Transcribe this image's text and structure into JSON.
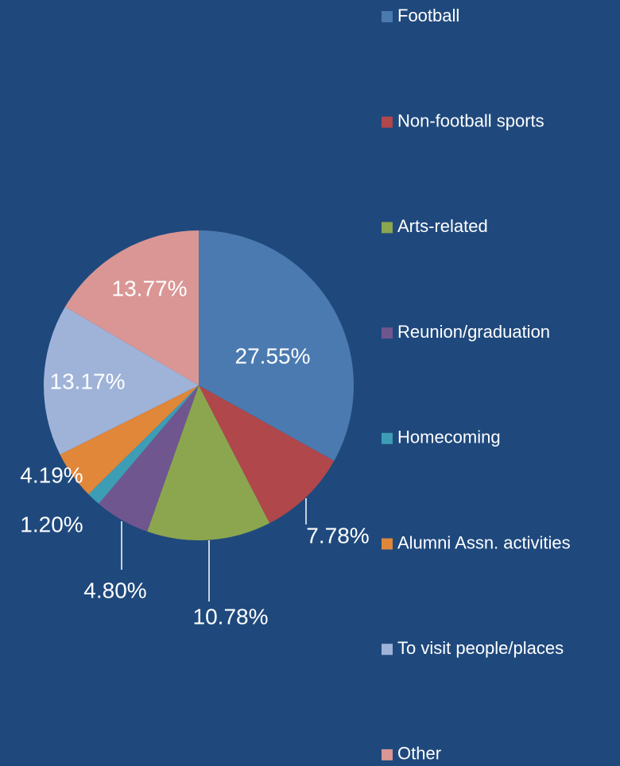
{
  "chart_data": {
    "type": "pie",
    "categories": [
      "Football",
      "Non-football sports",
      "Arts-related",
      "Reunion/graduation",
      "Homecoming",
      "Alumni Assn. activities",
      "To visit people/places",
      "Other"
    ],
    "values": [
      27.55,
      7.78,
      10.78,
      4.8,
      1.2,
      4.19,
      13.17,
      13.77
    ],
    "value_labels": [
      "27.55%",
      "7.78%",
      "10.78%",
      "4.80%",
      "1.20%",
      "4.19%",
      "13.17%",
      "13.77%"
    ],
    "colors": [
      "#4a7ab0",
      "#b0474a",
      "#8ca64f",
      "#70568f",
      "#3d9db5",
      "#e0873a",
      "#9fb3d9",
      "#d99694"
    ],
    "legend": "right"
  }
}
